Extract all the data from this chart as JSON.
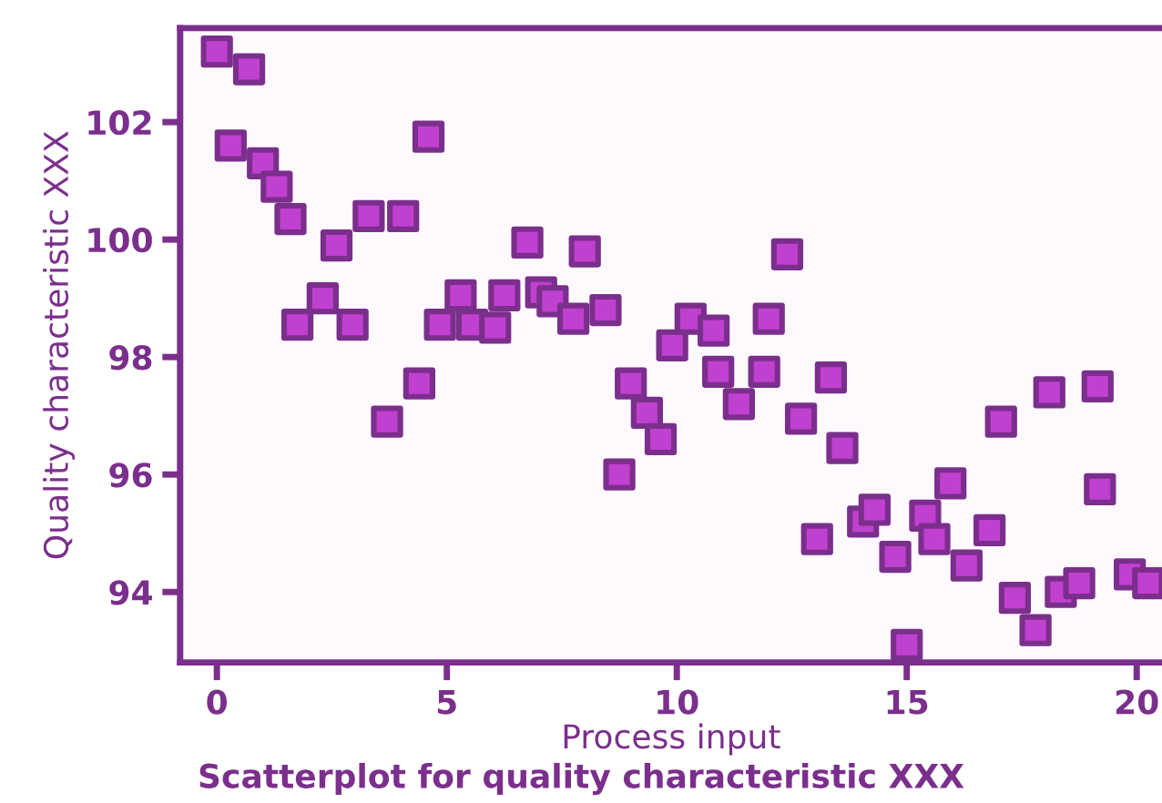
{
  "chart_data": {
    "type": "scatter",
    "title": "Scatterplot for quality characteristic XXX",
    "xlabel": "Process input",
    "ylabel": "Quality characteristic XXX",
    "x": [
      0,
      0.7,
      0.3,
      1.0,
      1.3,
      1.6,
      1.75,
      2.3,
      2.6,
      2.95,
      3.3,
      3.7,
      4.05,
      4.4,
      4.6,
      4.85,
      5.3,
      5.55,
      6.05,
      6.25,
      6.75,
      7.05,
      7.3,
      7.75,
      8.0,
      8.45,
      8.75,
      9.0,
      9.35,
      9.65,
      9.9,
      10.3,
      10.8,
      10.9,
      11.35,
      11.9,
      12.0,
      12.4,
      12.7,
      13.05,
      13.35,
      13.6,
      14.05,
      14.3,
      14.75,
      15.0,
      15.4,
      15.6,
      15.95,
      16.3,
      16.8,
      17.05,
      17.35,
      17.8,
      18.1,
      18.35,
      18.75,
      19.15,
      19.2,
      19.85,
      20.25
    ],
    "series": [
      {
        "color": "#c040d0",
        "values": [
          103.2,
          102.9,
          101.6,
          101.3,
          100.9,
          100.35,
          98.55,
          99.0,
          99.9,
          98.55,
          100.4,
          96.9,
          100.4,
          97.55,
          101.75,
          98.55,
          99.05,
          98.55,
          98.5,
          99.05,
          99.95,
          99.1,
          98.95,
          98.65,
          99.8,
          98.8,
          96.0,
          97.55,
          97.05,
          96.6,
          98.2,
          98.65,
          98.45,
          97.75,
          97.2,
          97.75,
          98.65,
          99.75,
          96.95,
          94.9,
          97.65,
          96.45,
          95.2,
          95.4,
          94.6,
          93.1,
          95.3,
          94.9,
          95.85,
          94.45,
          95.05,
          96.9,
          93.9,
          93.35,
          97.4,
          94.0,
          94.15,
          97.5,
          95.75,
          94.3,
          94.15
        ]
      }
    ],
    "xlim": [
      -0.8,
      20.55
    ],
    "ylim": [
      92.8,
      103.6
    ],
    "xticks": [
      0,
      5,
      10,
      15,
      20
    ],
    "yticks": [
      94,
      96,
      98,
      100,
      102
    ],
    "marker": "square",
    "grid": false,
    "legend": false
  }
}
